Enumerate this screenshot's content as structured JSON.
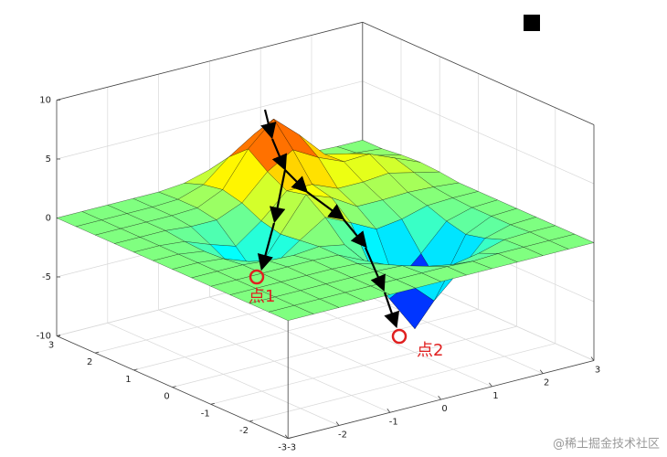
{
  "chart_data": {
    "type": "surface",
    "colormap": "jet",
    "grid": true,
    "x": [
      -3,
      -2.5,
      -2,
      -1.5,
      -1,
      -0.5,
      0,
      0.5,
      1,
      1.5,
      2,
      2.5,
      3
    ],
    "y": [
      -3,
      -2.5,
      -2,
      -1.5,
      -1,
      -0.5,
      0,
      0.5,
      1,
      1.5,
      2,
      2.5,
      3
    ],
    "z": [
      [
        0,
        0,
        0,
        0,
        0,
        0,
        0,
        0,
        0,
        0,
        0,
        0,
        0
      ],
      [
        0,
        0,
        0,
        0,
        0,
        0,
        0,
        0,
        -0.1,
        0,
        0,
        0,
        0
      ],
      [
        0,
        0,
        0,
        0,
        0,
        0,
        -0.1,
        -0.7,
        -1.1,
        -0.7,
        -0.1,
        0,
        0
      ],
      [
        0,
        0,
        0,
        0,
        0,
        -0.1,
        -0.7,
        -2.9,
        -4.9,
        -2.9,
        -0.7,
        -0.1,
        0
      ],
      [
        0,
        0,
        0,
        0,
        0,
        -0.1,
        -1.1,
        -4.9,
        -8,
        -4.9,
        -1.1,
        -0.1,
        0
      ],
      [
        0,
        0,
        0,
        -0.2,
        -0.3,
        -0.1,
        -0.5,
        -2.8,
        -4.9,
        -2.9,
        -0.7,
        -0.1,
        0
      ],
      [
        0,
        0,
        -0.2,
        -1,
        -1.8,
        -0.3,
        1.1,
        0.1,
        -1,
        -0.7,
        -0.1,
        0,
        0
      ],
      [
        0,
        0,
        -0.3,
        -1.9,
        -3.3,
        -0.5,
        2.3,
        1.5,
        0.2,
        0.2,
        0.3,
        0.2,
        0
      ],
      [
        0,
        0,
        -0.2,
        -1,
        -1.7,
        -0.1,
        1.9,
        1.9,
        1,
        1,
        1.2,
        0.7,
        0.2
      ],
      [
        0,
        0,
        0,
        -0.2,
        -0.2,
        0.7,
        2.8,
        4.1,
        2.9,
        2,
        2.1,
        1.2,
        0.3
      ],
      [
        0,
        0,
        0,
        0,
        0.1,
        1.1,
        4,
        6,
        4.1,
        1.9,
        1.4,
        0.7,
        0.2
      ],
      [
        0,
        0,
        0,
        0,
        0.1,
        0.8,
        2.6,
        4,
        2.6,
        0.9,
        0.4,
        0.2,
        0
      ],
      [
        0,
        0,
        0,
        0,
        0,
        0.2,
        0.8,
        1.1,
        0.8,
        0.2,
        0.1,
        0,
        0
      ]
    ],
    "xlim": [
      -3,
      3
    ],
    "ylim": [
      -3,
      3
    ],
    "zlim": [
      -10,
      10
    ],
    "xticks": [
      -3,
      -2,
      -1,
      0,
      1,
      2,
      3
    ],
    "yticks": [
      -3,
      -2,
      -1,
      0,
      1,
      2,
      3
    ],
    "zticks": [
      -10,
      -5,
      0,
      5,
      10
    ],
    "annotations": [
      "点1",
      "点2"
    ]
  },
  "watermark": "@稀土掘金技术社区"
}
